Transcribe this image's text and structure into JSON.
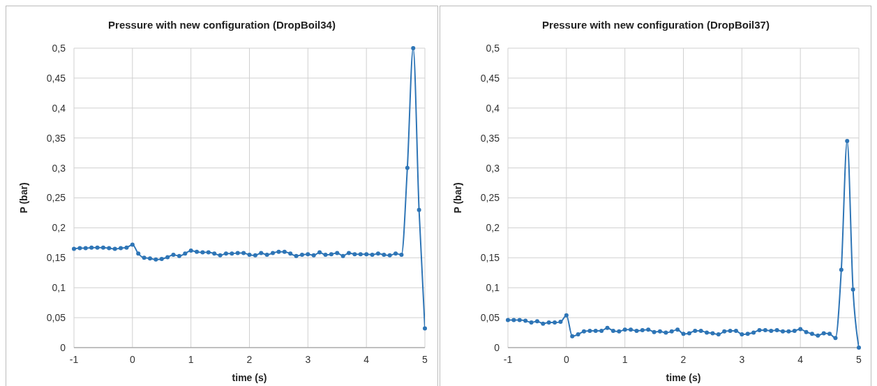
{
  "chart_data": [
    {
      "type": "line",
      "title": "Pressure with new configuration (DropBoil34)",
      "xlabel": "time  (s)",
      "ylabel": "P  (bar)",
      "grid": true,
      "marker": "circle",
      "line_style": "solid",
      "xlim": [
        -1,
        5
      ],
      "xticks": [
        -1,
        0,
        1,
        2,
        3,
        4,
        5
      ],
      "ylim": [
        0,
        0.5
      ],
      "yticks": [
        0,
        {
          "value": 0.05,
          "label": "0,05"
        },
        {
          "value": 0.1,
          "label": "0,1"
        },
        {
          "value": 0.15,
          "label": "0,15"
        },
        {
          "value": 0.2,
          "label": "0,2"
        },
        {
          "value": 0.25,
          "label": "0,25"
        },
        {
          "value": 0.3,
          "label": "0,3"
        },
        {
          "value": 0.35,
          "label": "0,35"
        },
        {
          "value": 0.4,
          "label": "0,4"
        },
        {
          "value": 0.45,
          "label": "0,45"
        },
        {
          "value": 0.5,
          "label": "0,5"
        }
      ],
      "x": [
        -1,
        -0.9,
        -0.8,
        -0.7,
        -0.6,
        -0.5,
        -0.4,
        -0.3,
        -0.2,
        -0.1,
        0,
        0.1,
        0.2,
        0.3,
        0.4,
        0.5,
        0.6,
        0.7,
        0.8,
        0.9,
        1,
        1.1,
        1.2,
        1.3,
        1.4,
        1.5,
        1.6,
        1.7,
        1.8,
        1.9,
        2,
        2.1,
        2.2,
        2.3,
        2.4,
        2.5,
        2.6,
        2.7,
        2.8,
        2.9,
        3,
        3.1,
        3.2,
        3.3,
        3.4,
        3.5,
        3.6,
        3.7,
        3.8,
        3.9,
        4,
        4.1,
        4.2,
        4.3,
        4.4,
        4.5,
        4.6,
        4.7,
        4.8,
        4.9,
        5
      ],
      "series": [
        {
          "color": "#2e75b6",
          "values": [
            0.165,
            0.166,
            0.166,
            0.167,
            0.167,
            0.167,
            0.166,
            0.165,
            0.166,
            0.167,
            0.172,
            0.157,
            0.15,
            0.149,
            0.147,
            0.148,
            0.151,
            0.155,
            0.153,
            0.157,
            0.162,
            0.16,
            0.159,
            0.159,
            0.157,
            0.154,
            0.157,
            0.157,
            0.158,
            0.158,
            0.155,
            0.154,
            0.158,
            0.155,
            0.158,
            0.16,
            0.16,
            0.157,
            0.153,
            0.155,
            0.156,
            0.154,
            0.159,
            0.155,
            0.156,
            0.158,
            0.153,
            0.158,
            0.156,
            0.156,
            0.156,
            0.155,
            0.157,
            0.155,
            0.154,
            0.157,
            0.155,
            0.3,
            0.5,
            0.23,
            0.032
          ]
        }
      ]
    },
    {
      "type": "line",
      "title": "Pressure with new configuration (DropBoil37)",
      "xlabel": "time  (s)",
      "ylabel": "P  (bar)",
      "grid": true,
      "marker": "circle",
      "line_style": "solid",
      "xlim": [
        -1,
        5
      ],
      "xticks": [
        -1,
        0,
        1,
        2,
        3,
        4,
        5
      ],
      "ylim": [
        0,
        0.5
      ],
      "yticks": [
        0,
        {
          "value": 0.05,
          "label": "0,05"
        },
        {
          "value": 0.1,
          "label": "0,1"
        },
        {
          "value": 0.15,
          "label": "0,15"
        },
        {
          "value": 0.2,
          "label": "0,2"
        },
        {
          "value": 0.25,
          "label": "0,25"
        },
        {
          "value": 0.3,
          "label": "0,3"
        },
        {
          "value": 0.35,
          "label": "0,35"
        },
        {
          "value": 0.4,
          "label": "0,4"
        },
        {
          "value": 0.45,
          "label": "0,45"
        },
        {
          "value": 0.5,
          "label": "0,5"
        }
      ],
      "x": [
        -1,
        -0.9,
        -0.8,
        -0.7,
        -0.6,
        -0.5,
        -0.4,
        -0.3,
        -0.2,
        -0.1,
        0,
        0.1,
        0.2,
        0.3,
        0.4,
        0.5,
        0.6,
        0.7,
        0.8,
        0.9,
        1,
        1.1,
        1.2,
        1.3,
        1.4,
        1.5,
        1.6,
        1.7,
        1.8,
        1.9,
        2,
        2.1,
        2.2,
        2.3,
        2.4,
        2.5,
        2.6,
        2.7,
        2.8,
        2.9,
        3,
        3.1,
        3.2,
        3.3,
        3.4,
        3.5,
        3.6,
        3.7,
        3.8,
        3.9,
        4,
        4.1,
        4.2,
        4.3,
        4.4,
        4.5,
        4.6,
        4.7,
        4.8,
        4.9,
        5
      ],
      "series": [
        {
          "color": "#2e75b6",
          "values": [
            0.046,
            0.046,
            0.046,
            0.045,
            0.042,
            0.044,
            0.04,
            0.042,
            0.042,
            0.043,
            0.054,
            0.019,
            0.022,
            0.027,
            0.028,
            0.028,
            0.028,
            0.033,
            0.028,
            0.027,
            0.03,
            0.03,
            0.028,
            0.029,
            0.03,
            0.026,
            0.027,
            0.025,
            0.027,
            0.03,
            0.023,
            0.024,
            0.028,
            0.028,
            0.025,
            0.024,
            0.022,
            0.027,
            0.028,
            0.028,
            0.022,
            0.023,
            0.025,
            0.029,
            0.029,
            0.028,
            0.029,
            0.027,
            0.027,
            0.028,
            0.031,
            0.026,
            0.023,
            0.02,
            0.024,
            0.023,
            0.016,
            0.13,
            0.345,
            0.097,
            0
          ]
        }
      ]
    }
  ]
}
